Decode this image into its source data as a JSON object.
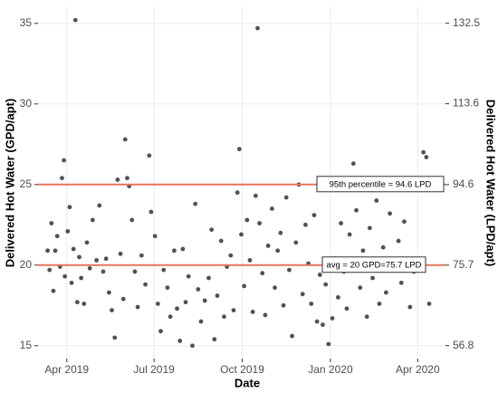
{
  "chart_data": {
    "type": "scatter",
    "x_label": "Date",
    "y_label": "Delivered Hot Water (GPD/apt)",
    "y2_label": "Delivered Hot Water (LPD/apt)",
    "xlim": [
      "2019-03-02",
      "2020-04-30"
    ],
    "xticks": [
      {
        "value": "2019-04-01",
        "label": "Apr 2019"
      },
      {
        "value": "2019-07-01",
        "label": "Jul 2019"
      },
      {
        "value": "2019-10-01",
        "label": "Oct 2019"
      },
      {
        "value": "2020-01-01",
        "label": "Jan 2020"
      },
      {
        "value": "2020-04-01",
        "label": "Apr 2020"
      }
    ],
    "ylim": [
      14.2,
      36.0
    ],
    "yticks": [
      15,
      20,
      25,
      30,
      35
    ],
    "y2lim": [
      53.75,
      136.26
    ],
    "y2ticks": [
      56.8,
      75.7,
      94.6,
      113.6,
      132.5
    ],
    "grid": true,
    "color": "#333333",
    "reference_color": "#e8735a",
    "reference_lines": [
      {
        "y": 25,
        "label": "95th percentile = 94.6 LPD"
      },
      {
        "y": 20,
        "label": "avg = 20 GPD=75.7 LPD"
      }
    ],
    "x": [
      "2019-03-12",
      "2019-03-14",
      "2019-03-16",
      "2019-03-18",
      "2019-03-20",
      "2019-03-22",
      "2019-03-25",
      "2019-03-27",
      "2019-03-29",
      "2019-03-30",
      "2019-04-02",
      "2019-04-04",
      "2019-04-06",
      "2019-04-08",
      "2019-04-10",
      "2019-04-12",
      "2019-04-14",
      "2019-04-16",
      "2019-04-19",
      "2019-04-22",
      "2019-04-25",
      "2019-04-28",
      "2019-05-02",
      "2019-05-05",
      "2019-05-09",
      "2019-05-12",
      "2019-05-15",
      "2019-05-18",
      "2019-05-21",
      "2019-05-24",
      "2019-05-27",
      "2019-05-30",
      "2019-06-01",
      "2019-06-03",
      "2019-06-05",
      "2019-06-08",
      "2019-06-11",
      "2019-06-14",
      "2019-06-18",
      "2019-06-22",
      "2019-06-26",
      "2019-06-28",
      "2019-07-02",
      "2019-07-05",
      "2019-07-08",
      "2019-07-11",
      "2019-07-15",
      "2019-07-18",
      "2019-07-22",
      "2019-07-25",
      "2019-07-28",
      "2019-07-31",
      "2019-08-03",
      "2019-08-06",
      "2019-08-10",
      "2019-08-13",
      "2019-08-16",
      "2019-08-19",
      "2019-08-23",
      "2019-08-27",
      "2019-08-30",
      "2019-09-02",
      "2019-09-05",
      "2019-09-09",
      "2019-09-12",
      "2019-09-15",
      "2019-09-19",
      "2019-09-22",
      "2019-09-26",
      "2019-09-28",
      "2019-09-30",
      "2019-10-03",
      "2019-10-06",
      "2019-10-09",
      "2019-10-12",
      "2019-10-15",
      "2019-10-17",
      "2019-10-19",
      "2019-10-22",
      "2019-10-25",
      "2019-10-28",
      "2019-11-01",
      "2019-11-04",
      "2019-11-07",
      "2019-11-10",
      "2019-11-13",
      "2019-11-16",
      "2019-11-19",
      "2019-11-22",
      "2019-11-26",
      "2019-11-29",
      "2019-12-03",
      "2019-12-06",
      "2019-12-09",
      "2019-12-12",
      "2019-12-15",
      "2019-12-18",
      "2019-12-21",
      "2019-12-24",
      "2019-12-27",
      "2019-12-30",
      "2020-01-03",
      "2020-01-06",
      "2020-01-09",
      "2020-01-12",
      "2020-01-15",
      "2020-01-18",
      "2020-01-21",
      "2020-01-25",
      "2020-01-28",
      "2020-02-01",
      "2020-02-04",
      "2020-02-08",
      "2020-02-11",
      "2020-02-14",
      "2020-02-18",
      "2020-02-21",
      "2020-02-25",
      "2020-02-28",
      "2020-03-03",
      "2020-03-06",
      "2020-03-09",
      "2020-03-12",
      "2020-03-15",
      "2020-03-18",
      "2020-03-21",
      "2020-03-24",
      "2020-03-28",
      "2020-04-04",
      "2020-04-07",
      "2020-04-10",
      "2020-04-13"
    ],
    "values": [
      20.9,
      19.7,
      22.6,
      18.4,
      20.9,
      21.8,
      19.9,
      25.4,
      26.5,
      19.3,
      22.1,
      23.6,
      18.9,
      21.0,
      35.2,
      17.7,
      20.5,
      19.2,
      17.6,
      21.4,
      19.8,
      22.8,
      20.3,
      23.7,
      19.6,
      20.4,
      18.3,
      17.2,
      15.5,
      25.3,
      20.7,
      17.9,
      27.8,
      25.4,
      24.9,
      22.8,
      19.6,
      17.4,
      20.6,
      18.8,
      26.8,
      23.3,
      21.8,
      17.6,
      15.9,
      19.7,
      18.6,
      16.8,
      20.9,
      17.3,
      15.3,
      21.0,
      17.7,
      19.3,
      15.0,
      23.8,
      18.5,
      16.5,
      17.8,
      19.2,
      22.2,
      15.4,
      18.1,
      21.5,
      16.8,
      19.9,
      20.6,
      17.2,
      24.5,
      27.2,
      21.9,
      18.7,
      22.8,
      20.3,
      17.1,
      24.3,
      34.7,
      22.6,
      19.5,
      16.9,
      21.2,
      23.5,
      18.6,
      20.9,
      22.0,
      17.5,
      24.2,
      19.7,
      15.6,
      21.4,
      25.0,
      18.2,
      22.5,
      20.1,
      17.6,
      23.1,
      16.5,
      19.4,
      16.3,
      18.8,
      15.1,
      16.7,
      20.4,
      18.0,
      22.6,
      19.6,
      17.3,
      21.9,
      26.3,
      23.4,
      18.6,
      20.9,
      16.8,
      22.3,
      19.2,
      24.0,
      17.6,
      21.1,
      18.3,
      23.2,
      19.8,
      25.4,
      21.5,
      18.9,
      22.7,
      20.2,
      17.4,
      19.6,
      25.1,
      27.0,
      26.7,
      17.6
    ]
  }
}
